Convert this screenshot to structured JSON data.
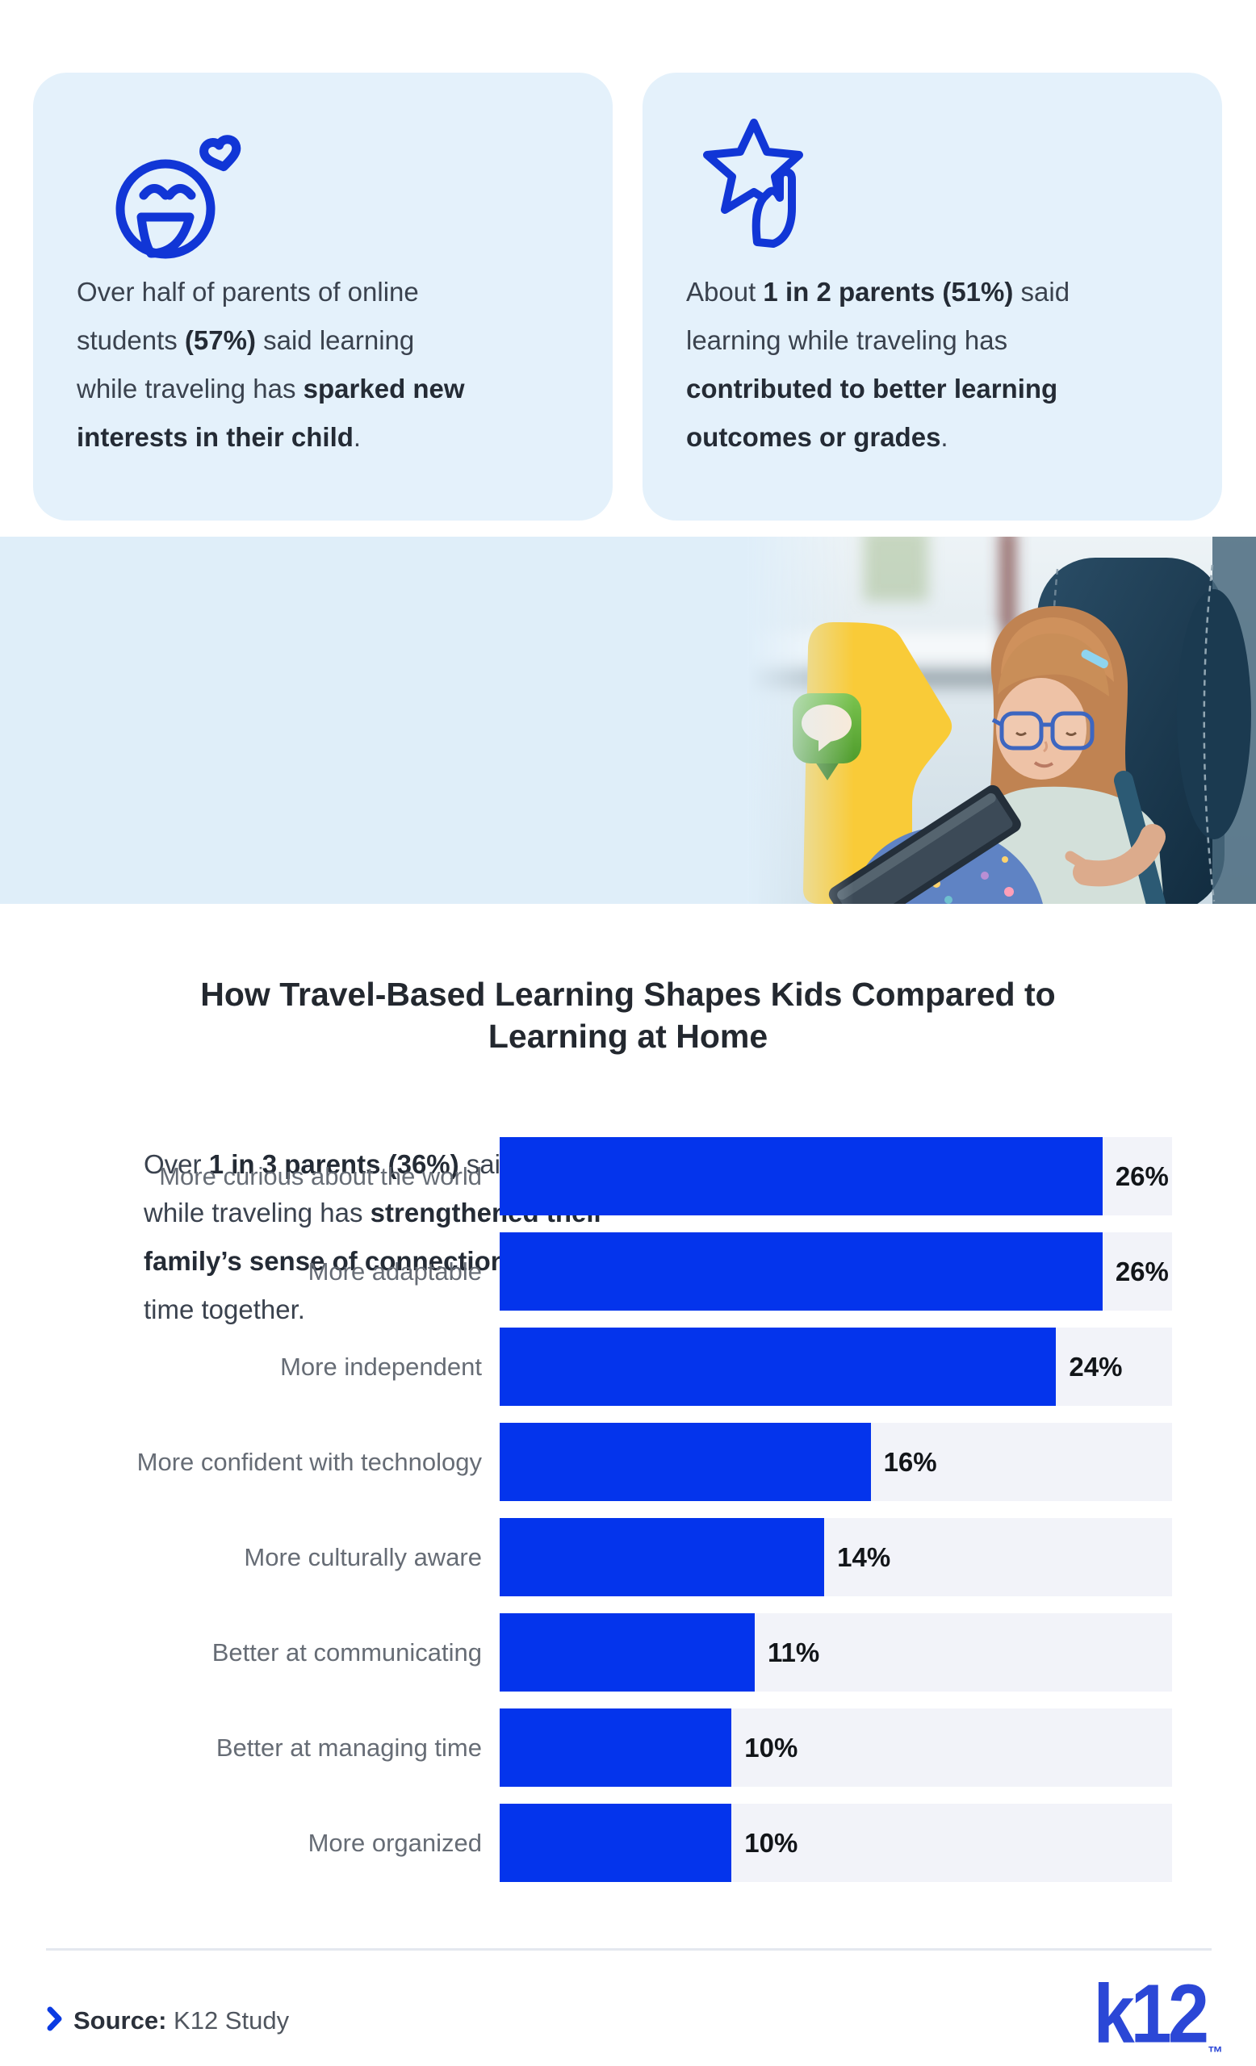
{
  "cards": [
    {
      "icon": "smiley-heart-icon",
      "segments": [
        {
          "text": "Over half of parents of online\nstudents ",
          "bold": false
        },
        {
          "text": "(57%)",
          "bold": true
        },
        {
          "text": " said learning\nwhile traveling has ",
          "bold": false
        },
        {
          "text": "sparked new\ninterests in their child",
          "bold": true
        },
        {
          "text": ".",
          "bold": false
        }
      ]
    },
    {
      "icon": "star-hand-icon",
      "segments": [
        {
          "text": "About ",
          "bold": false
        },
        {
          "text": "1 in 2 parents (51%)",
          "bold": true
        },
        {
          "text": " said\nlearning while traveling has\n",
          "bold": false
        },
        {
          "text": "contributed to better learning\noutcomes or grades",
          "bold": true
        },
        {
          "text": ".",
          "bold": false
        }
      ]
    }
  ],
  "hero": {
    "icon": "chat-bubble-icon",
    "photo_alt": "Girl wearing glasses using a tablet while seated in a car seat",
    "segments": [
      {
        "text": "Over ",
        "bold": false
      },
      {
        "text": "1 in 3 parents (36%)",
        "bold": true
      },
      {
        "text": " said learning\nwhile traveling has ",
        "bold": false
      },
      {
        "text": "strengthened their\nfamily’s sense of connection",
        "bold": true
      },
      {
        "text": " or quality\ntime together.",
        "bold": false
      }
    ]
  },
  "chart_data": {
    "type": "bar",
    "orientation": "horizontal",
    "title": "How Travel-Based Learning Shapes Kids Compared to Learning at Home",
    "title_lines": [
      "How Travel-Based Learning Shapes Kids Compared to",
      "Learning at Home"
    ],
    "categories": [
      "More curious about the world",
      "More adaptable",
      "More independent",
      "More confident with technology",
      "More culturally aware",
      "Better at communicating",
      "Better at managing time",
      "More organized"
    ],
    "values": [
      26,
      26,
      24,
      16,
      14,
      11,
      10,
      10
    ],
    "value_suffix": "%",
    "xlim": [
      0,
      29
    ],
    "grid": false,
    "legend": false,
    "bar_color": "#0434EC",
    "track_color": "#F2F3F9"
  },
  "footer": {
    "source_label": "Source:",
    "source_value": " K12 Study",
    "logo_text": "k12",
    "logo_tm": "™"
  },
  "colors": {
    "accent_blue": "#0434EC",
    "icon_blue": "#1136D6",
    "card_bg": "#E4F1FB",
    "section_bg": "#DFEEF9",
    "logo_blue": "#2B47D6",
    "yellow_shape": "#F9CB38",
    "chat_green": "#5CA635"
  }
}
